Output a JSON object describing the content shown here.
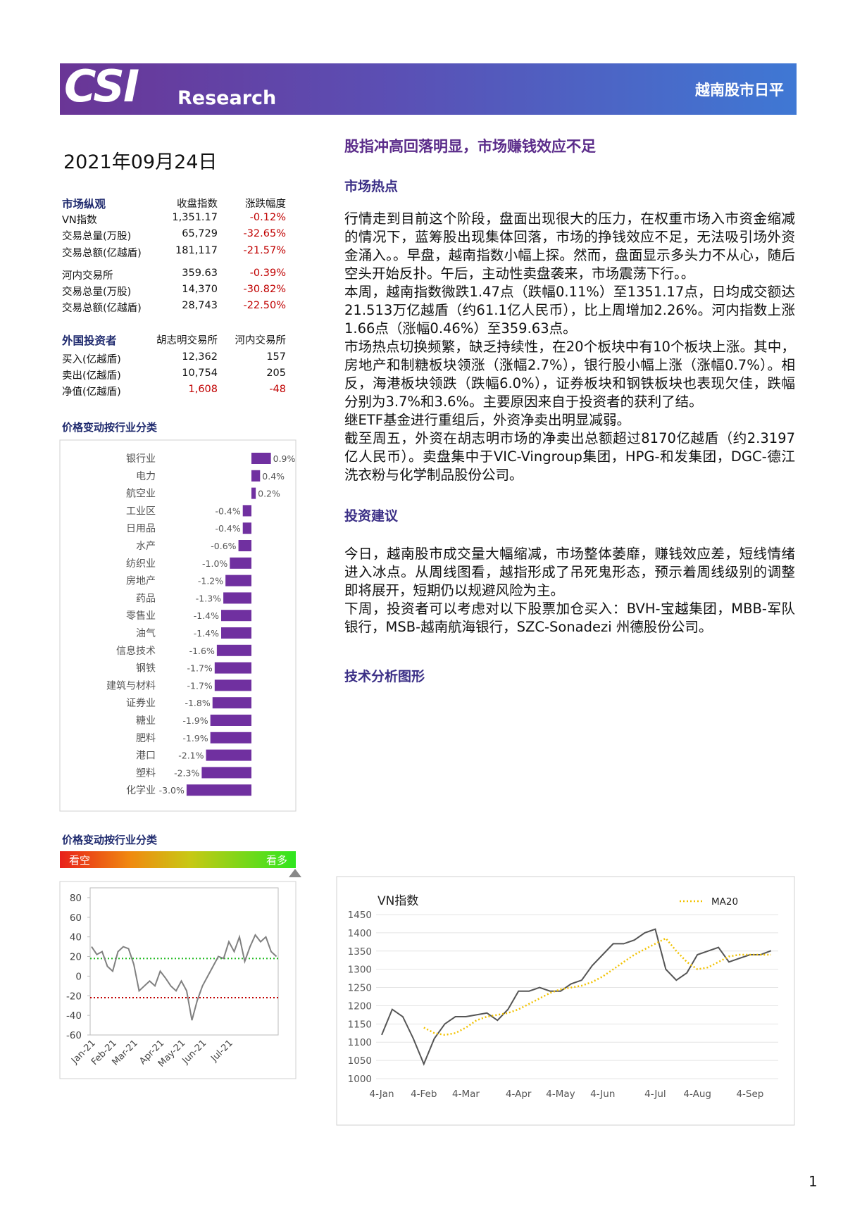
{
  "header": {
    "logo": "CSI",
    "sub": "Research",
    "title": "越南股市日平"
  },
  "date": "2021年09月24日",
  "headline": "股指冲高回落明显，市场赚钱效应不足",
  "hot": {
    "title": "市场热点",
    "paragraphs": [
      "行情走到目前这个阶段，盘面出现很大的压力，在权重市场入市资金缩减的情况下，蓝筹股出现集体回落，市场的挣钱效应不足，无法吸引场外资金涌入。。早盘，越南指数小幅上探。然而，盘面显示多头力不从心，随后空头开始反扑。午后，主动性卖盘袭来，市场震荡下行。。",
      "本周，越南指数微跌1.47点（跌幅0.11%）至1351.17点，日均成交额达21.513万亿越盾（约61.1亿人民币），比上周增加2.26%。河内指数上涨1.66点（涨幅0.46%）至359.63点。",
      "市场热点切换频繁，缺乏持续性，在20个板块中有10个板块上涨。其中，房地产和制糖板块领涨（涨幅2.7%），银行股小幅上涨（涨幅0.7%）。相反，海港板块领跌（跌幅6.0%），证券板块和钢铁板块也表现欠佳，跌幅分别为3.7%和3.6%。主要原因来自于投资者的获利了结。",
      "继ETF基金进行重组后，外资净卖出明显减弱。",
      "截至周五，外资在胡志明市场的净卖出总额超过8170亿越盾（约2.3197亿人民币）。卖盘集中于VIC-Vingroup集团，HPG-和发集团，DGC-德江洗衣粉与化学制品股份公司。"
    ]
  },
  "advice": {
    "title": "投资建议",
    "paragraphs": [
      "今日，越南股市成交量大幅缩减，市场整体萎靡，赚钱效应差，短线情绪进入冰点。从周线图看，越指形成了吊死鬼形态，预示着周线级别的调整即将展开，短期仍以规避风险为主。",
      "下周，投资者可以考虑对以下股票加仓买入：BVH-宝越集团，MBB-军队银行，MSB-越南航海银行，SZC-Sonadezi 州德股份公司。"
    ]
  },
  "technical": {
    "title": "技术分析图形"
  },
  "overview": {
    "header": [
      "市场纵观",
      "收盘指数",
      "涨跌幅度"
    ],
    "rows": [
      [
        "VN指数",
        "1,351.17",
        "-0.12%"
      ],
      [
        "交易总量(万股)",
        "65,729",
        "-32.65%"
      ],
      [
        "交易总额(亿越盾)",
        "181,117",
        "-21.57%"
      ],
      [
        "河内交易所",
        "359.63",
        "-0.39%"
      ],
      [
        "交易总量(万股)",
        "14,370",
        "-30.82%"
      ],
      [
        "交易总额(亿越盾)",
        "28,743",
        "-22.50%"
      ]
    ]
  },
  "foreign": {
    "header": [
      "外国投资者",
      "胡志明交易所",
      "河内交易所"
    ],
    "rows": [
      [
        "买入(亿越盾)",
        "12,362",
        "157"
      ],
      [
        "卖出(亿越盾)",
        "10,754",
        "205"
      ],
      [
        "净值(亿越盾)",
        "1,608",
        "-48"
      ]
    ]
  },
  "page_number": "1",
  "chart_data": [
    {
      "type": "hbar",
      "title": "价格变动按行业分类",
      "color": "#7030a0",
      "categories": [
        "银行业",
        "电力",
        "航空业",
        "工业区",
        "日用品",
        "水产",
        "纺织业",
        "房地产",
        "药品",
        "零售业",
        "油气",
        "信息技术",
        "钢铁",
        "建筑与材料",
        "证券业",
        "糖业",
        "肥料",
        "港口",
        "塑料",
        "化学业"
      ],
      "values": [
        0.9,
        0.4,
        0.2,
        -0.4,
        -0.4,
        -0.6,
        -1.0,
        -1.2,
        -1.3,
        -1.4,
        -1.4,
        -1.6,
        -1.7,
        -1.7,
        -1.8,
        -1.9,
        -1.9,
        -2.1,
        -2.3,
        -3.0
      ],
      "value_labels": [
        "0.9%",
        "0.4%",
        "0.2%",
        "-0.4%",
        "-0.4%",
        "-0.6%",
        "-1.0%",
        "-1.2%",
        "-1.3%",
        "-1.4%",
        "-1.4%",
        "-1.6%",
        "-1.7%",
        "-1.7%",
        "-1.8%",
        "-1.9%",
        "-1.9%",
        "-2.1%",
        "-2.3%",
        "-3.0%"
      ]
    },
    {
      "type": "line",
      "title": "价格变动按行业分类",
      "scale_labels": [
        "看空",
        "看多"
      ],
      "color": "#808080",
      "categories": [
        "Jan-21",
        null,
        null,
        null,
        "Feb-21",
        null,
        null,
        null,
        "Mar-21",
        null,
        null,
        null,
        null,
        "Apr-21",
        null,
        null,
        null,
        "May-21",
        null,
        null,
        null,
        "Jun-21",
        null,
        null,
        null,
        null,
        "Jul-21",
        null,
        null,
        null,
        null,
        null,
        null,
        null,
        null,
        null
      ],
      "values": [
        30,
        22,
        25,
        10,
        5,
        25,
        30,
        28,
        12,
        -15,
        -10,
        -5,
        -10,
        5,
        -2,
        -10,
        -15,
        -5,
        -15,
        -45,
        -25,
        -10,
        0,
        10,
        20,
        18,
        35,
        25,
        40,
        15,
        30,
        42,
        35,
        40,
        25,
        20
      ],
      "ylim": [
        -60,
        90
      ],
      "yticks": [
        80,
        60,
        40,
        20,
        0,
        -20,
        -40,
        -60
      ],
      "reference_lines": [
        {
          "value": 18,
          "color": "#22bb22"
        },
        {
          "value": -22,
          "color": "#c00000"
        }
      ]
    },
    {
      "type": "line",
      "title": "VN指数",
      "grid": true,
      "categories": [
        "4-Jan",
        null,
        null,
        null,
        "4-Feb",
        null,
        null,
        null,
        "4-Mar",
        null,
        null,
        null,
        null,
        "4-Apr",
        null,
        null,
        null,
        "4-May",
        null,
        null,
        null,
        "4-Jun",
        null,
        null,
        null,
        null,
        "4-Jul",
        null,
        null,
        null,
        "4-Aug",
        null,
        null,
        null,
        null,
        "4-Sep",
        null,
        null
      ],
      "series": [
        {
          "color": "#555555",
          "values": [
            1120,
            1190,
            1170,
            1110,
            1040,
            1110,
            1150,
            1170,
            1170,
            1175,
            1180,
            1160,
            1190,
            1240,
            1240,
            1250,
            1240,
            1240,
            1260,
            1270,
            1310,
            1340,
            1370,
            1370,
            1380,
            1400,
            1410,
            1300,
            1270,
            1290,
            1340,
            1350,
            1360,
            1320,
            1330,
            1340,
            1340,
            1351
          ]
        },
        {
          "name": "MA20",
          "color": "#f2c200",
          "dashed": true,
          "values": [
            null,
            null,
            null,
            null,
            1140,
            1125,
            1120,
            1125,
            1140,
            1160,
            1170,
            1175,
            1180,
            1190,
            1205,
            1220,
            1235,
            1245,
            1250,
            1255,
            1265,
            1280,
            1300,
            1320,
            1340,
            1355,
            1370,
            1385,
            1350,
            1320,
            1300,
            1305,
            1320,
            1335,
            1340,
            1340,
            1340,
            1340
          ]
        }
      ],
      "ylim": [
        1000,
        1450
      ],
      "yticks": [
        1000,
        1050,
        1100,
        1150,
        1200,
        1250,
        1300,
        1350,
        1400,
        1450
      ]
    }
  ]
}
